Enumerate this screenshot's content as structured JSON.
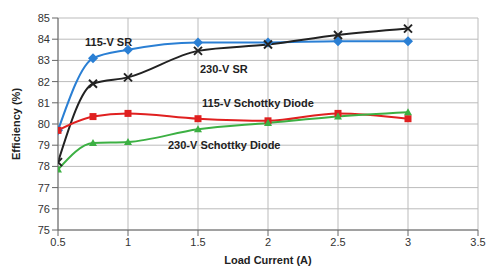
{
  "chart_data": {
    "type": "line",
    "x_label": "Load Current (A)",
    "y_label": "Efficiency (%)",
    "x": [
      0.5,
      0.75,
      1,
      1.5,
      2,
      2.5,
      3
    ],
    "xlim": [
      0.5,
      3.5
    ],
    "xticks": [
      0.5,
      1,
      1.5,
      2,
      2.5,
      3,
      3.5
    ],
    "ylim": [
      75,
      85
    ],
    "yticks": [
      75,
      76,
      77,
      78,
      79,
      80,
      81,
      82,
      83,
      84,
      85
    ],
    "grid": true,
    "series": [
      {
        "name": "115-V SR",
        "color": "#2a7fd4",
        "marker": "diamond",
        "values": [
          79.7,
          83.1,
          83.5,
          83.85,
          83.85,
          83.9,
          83.9
        ]
      },
      {
        "name": "230-V SR",
        "color": "#222222",
        "marker": "x",
        "values": [
          78.2,
          81.9,
          82.2,
          83.45,
          83.75,
          84.2,
          84.5
        ]
      },
      {
        "name": "115-V Schottky Diode",
        "color": "#e02020",
        "marker": "square",
        "values": [
          79.7,
          80.35,
          80.5,
          80.25,
          80.15,
          80.5,
          80.25
        ]
      },
      {
        "name": "230-V Schottky Diode",
        "color": "#3cb043",
        "marker": "triangle",
        "values": [
          77.85,
          79.1,
          79.15,
          79.75,
          80.05,
          80.35,
          80.55
        ]
      }
    ]
  }
}
